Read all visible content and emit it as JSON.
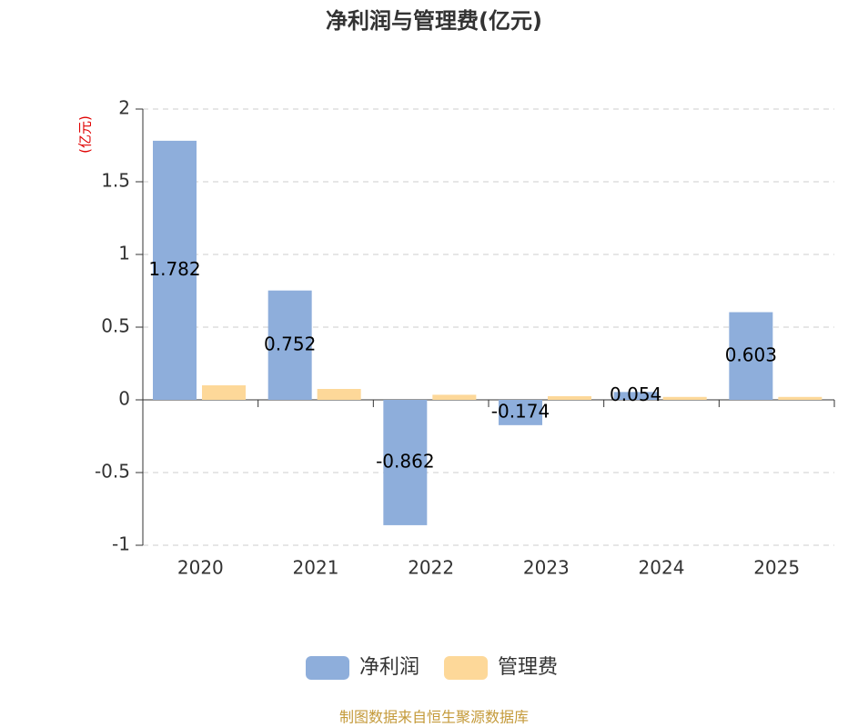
{
  "chart_data": {
    "type": "bar",
    "title": "净利润与管理费(亿元)",
    "y_axis_label": "(亿元)",
    "categories": [
      "2020",
      "2021",
      "2022",
      "2023",
      "2024",
      "2025"
    ],
    "series": [
      {
        "name": "净利润",
        "color": "#8eaedb",
        "values": [
          1.782,
          0.752,
          -0.862,
          -0.174,
          0.054,
          0.603
        ]
      },
      {
        "name": "管理费",
        "color": "#fdd899",
        "values": [
          0.1,
          0.075,
          0.035,
          0.025,
          0.02,
          0.02
        ]
      }
    ],
    "ylim": [
      -1,
      2
    ],
    "yticks": [
      -1,
      -0.5,
      0,
      0.5,
      1,
      1.5,
      2
    ],
    "grid": true,
    "source": "制图数据来自恒生聚源数据库"
  }
}
